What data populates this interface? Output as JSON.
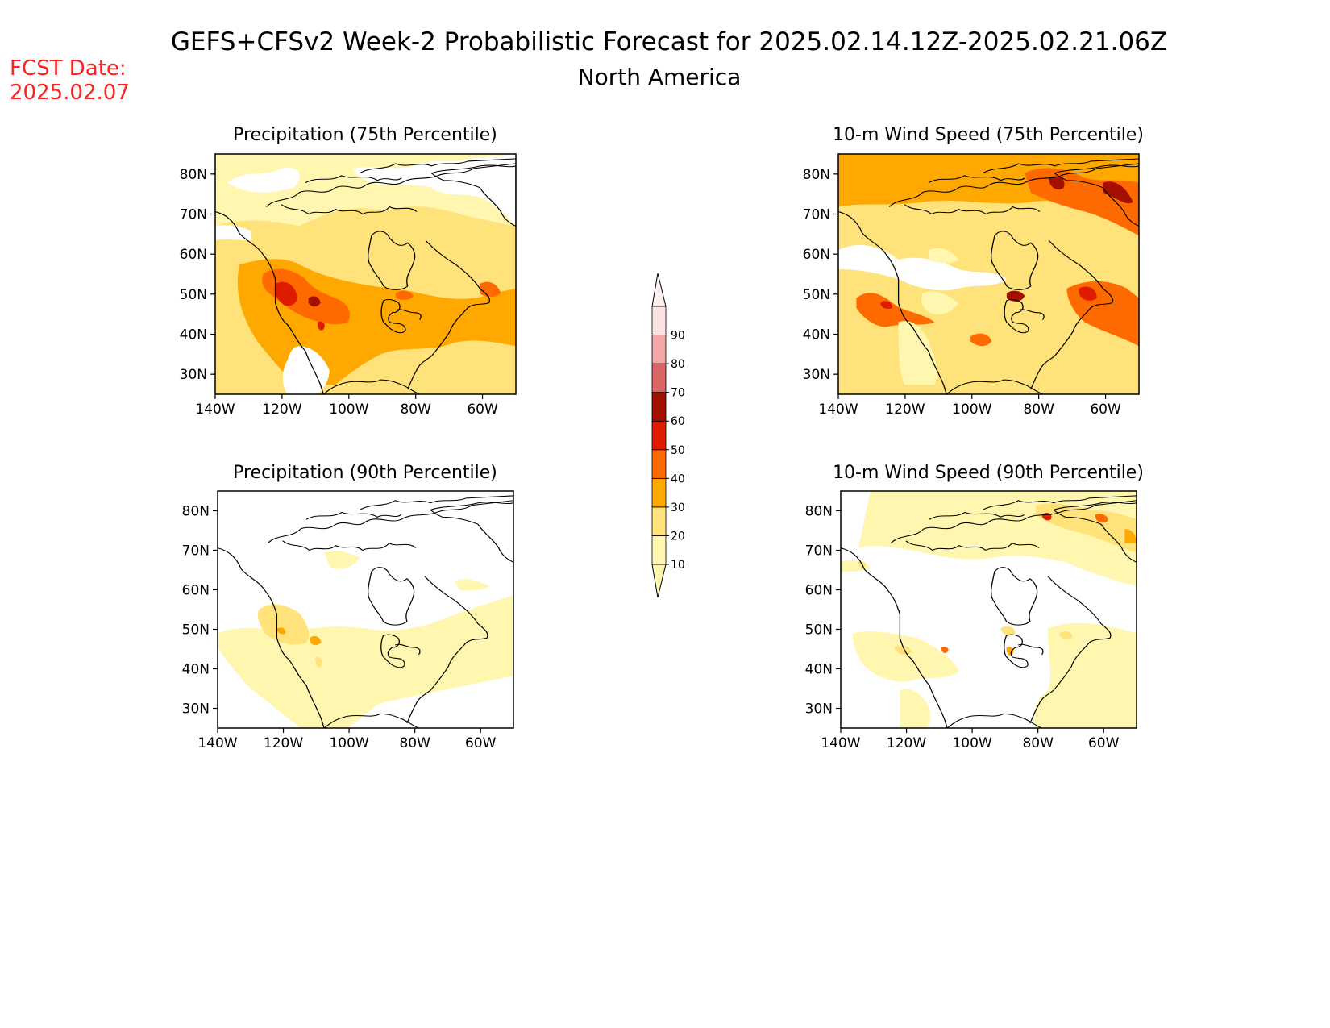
{
  "header": {
    "title": "GEFS+CFSv2 Week-2 Probabilistic Forecast for 2025.02.14.12Z-2025.02.21.06Z",
    "subtitle": "North America",
    "fcst_label": "FCST Date:",
    "fcst_date": "2025.02.07",
    "fcst_color": "#ff2020"
  },
  "panels": [
    {
      "id": "precip75",
      "title": "Precipitation (75th Percentile)"
    },
    {
      "id": "wind75",
      "title": "10-m Wind Speed (75th Percentile)"
    },
    {
      "id": "precip90",
      "title": "Precipitation (90th Percentile)"
    },
    {
      "id": "wind90",
      "title": "10-m Wind Speed (90th Percentile)"
    }
  ],
  "axes": {
    "lat_labels": [
      "80N",
      "70N",
      "60N",
      "50N",
      "40N",
      "30N"
    ],
    "lon_labels": [
      "140W",
      "120W",
      "100W",
      "80W",
      "60W"
    ]
  },
  "colorbar": {
    "levels": [
      "10",
      "20",
      "30",
      "40",
      "50",
      "60",
      "70",
      "80",
      "90"
    ],
    "colors": [
      "#fff6b0",
      "#ffe27a",
      "#ffa800",
      "#ff6a00",
      "#e01c00",
      "#a50f00",
      "#dd6464",
      "#f4a6a6",
      "#fde2e2"
    ]
  }
}
